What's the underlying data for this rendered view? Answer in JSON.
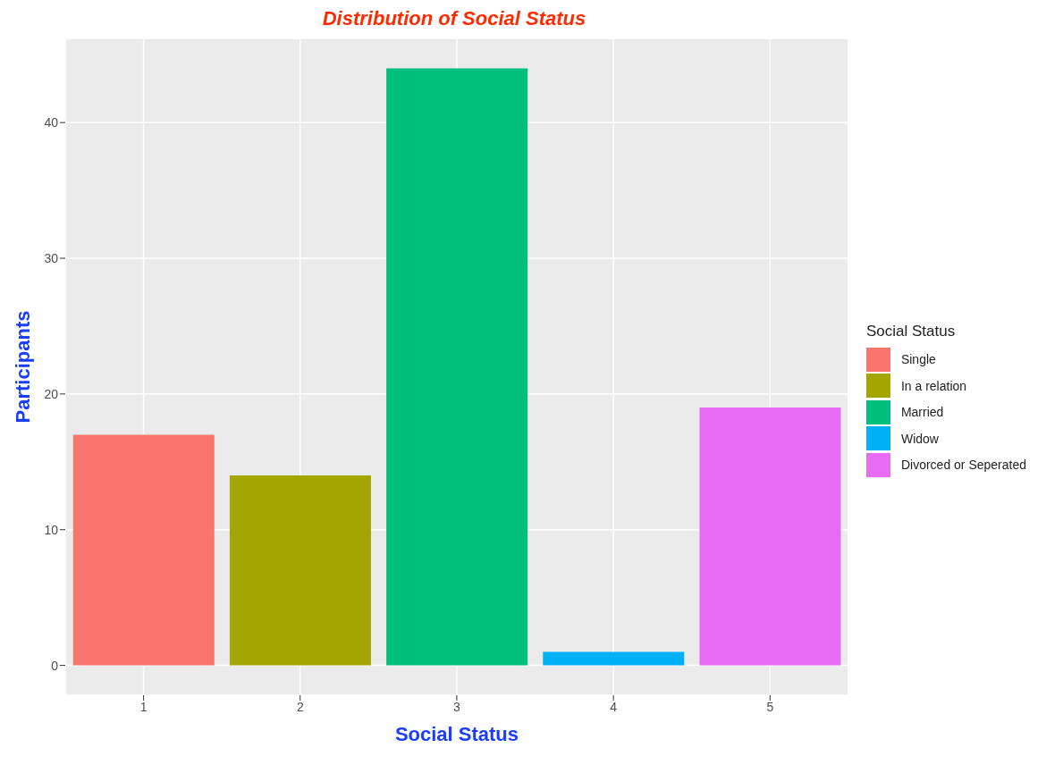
{
  "chart_data": {
    "type": "bar",
    "title": "Distribution of Social Status",
    "xlabel": "Social Status",
    "ylabel": "Participants",
    "legend_title": "Social Status",
    "categories": [
      "1",
      "2",
      "3",
      "4",
      "5"
    ],
    "series": [
      {
        "name": "Single",
        "color": "#f8766d",
        "values": [
          17,
          null,
          null,
          null,
          null
        ]
      },
      {
        "name": "In a relation",
        "color": "#a3a500",
        "values": [
          null,
          14,
          null,
          null,
          null
        ]
      },
      {
        "name": "Married",
        "color": "#00bf7d",
        "values": [
          null,
          null,
          44,
          null,
          null
        ]
      },
      {
        "name": "Widow",
        "color": "#00b0f6",
        "values": [
          null,
          null,
          null,
          1,
          null
        ]
      },
      {
        "name": "Divorced or Seperated",
        "color": "#e76bf3",
        "values": [
          null,
          null,
          null,
          null,
          19
        ]
      }
    ],
    "stacked": true,
    "ylim": [
      -2.2,
      46.2
    ],
    "yticks": [
      0,
      10,
      20,
      30,
      40
    ],
    "grid": true,
    "legend": "right"
  }
}
